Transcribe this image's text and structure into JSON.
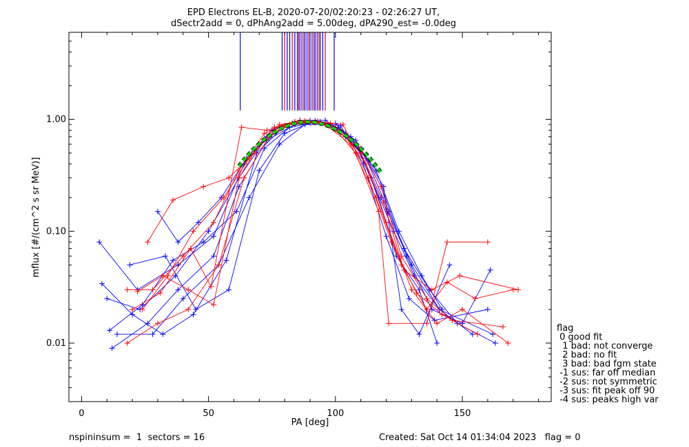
{
  "title_line1": "EPD Electrons EL-B, 2020-07-20/02:20:23 - 02:26:27 UT,",
  "title_line2": "dSectr2add = 0, dPhAng2add = 5.00deg, dPA290_est=  -0.0deg",
  "footer_left": "nspininsum =  1  sectors = 16",
  "footer_right": "Created: Sat Oct 14 01:34:04 2023   flag = 0",
  "legend": {
    "title": "flag",
    "items": [
      " 0 good fit",
      "  1 bad: not converge",
      "  2 bad: no fit",
      "  3 bad: bad fgm state",
      " -1 sus: far off median",
      " -2 sus: not symmetric",
      " -3 sus: fit peak off 90",
      " -4 sus: peaks high var"
    ]
  },
  "chart_data": {
    "type": "line",
    "xlabel": "PA [deg]",
    "ylabel": "mflux [#/(cm^2 s sr MeV)]",
    "xlim": [
      -5,
      185
    ],
    "ylim": [
      0.003,
      6
    ],
    "yscale": "log",
    "xticks": [
      0,
      50,
      100,
      150
    ],
    "xtick_labels": [
      "0",
      "50",
      "100",
      "150"
    ],
    "yticks": [
      0.01,
      0.1,
      1.0
    ],
    "ytick_labels": [
      "0.01",
      "0.10",
      "1.00"
    ],
    "colors": {
      "sector_a": "#0000ff",
      "sector_b": "#ff0000",
      "fit": "#00dd00",
      "fit_outline": "#000000"
    },
    "series": [
      {
        "color": "blue",
        "x": [
          7,
          22,
          38,
          52,
          64,
          75,
          84,
          92,
          101,
          108,
          114,
          123,
          131,
          141,
          162
        ],
        "y": [
          0.08,
          0.03,
          0.05,
          0.09,
          0.4,
          0.8,
          0.95,
          0.96,
          0.85,
          0.6,
          0.3,
          0.1,
          0.04,
          0.02,
          0.012
        ]
      },
      {
        "color": "blue",
        "x": [
          10,
          23,
          37,
          50,
          62,
          73,
          83,
          92,
          102,
          110,
          118,
          127,
          137,
          148,
          163
        ],
        "y": [
          0.025,
          0.02,
          0.04,
          0.1,
          0.3,
          0.7,
          0.92,
          0.97,
          0.8,
          0.5,
          0.2,
          0.07,
          0.03,
          0.015,
          0.01
        ]
      },
      {
        "color": "blue",
        "x": [
          12,
          26,
          38,
          52,
          62,
          73,
          84,
          94,
          104,
          112,
          121,
          130,
          141,
          154
        ],
        "y": [
          0.009,
          0.015,
          0.03,
          0.06,
          0.25,
          0.65,
          0.9,
          0.95,
          0.75,
          0.45,
          0.15,
          0.05,
          0.02,
          0.012
        ]
      },
      {
        "color": "blue",
        "x": [
          30,
          38,
          46,
          55,
          65,
          76,
          86,
          96,
          106,
          116,
          125,
          134,
          142
        ],
        "y": [
          0.15,
          0.08,
          0.12,
          0.2,
          0.45,
          0.85,
          0.98,
          0.98,
          0.7,
          0.35,
          0.1,
          0.04,
          0.02
        ]
      },
      {
        "color": "blue",
        "x": [
          14,
          28,
          40,
          54,
          66,
          78,
          88,
          98,
          108,
          118,
          128,
          138,
          150,
          161
        ],
        "y": [
          0.012,
          0.012,
          0.025,
          0.05,
          0.2,
          0.6,
          0.9,
          0.9,
          0.65,
          0.25,
          0.06,
          0.02,
          0.015,
          0.045
        ]
      },
      {
        "color": "blue",
        "x": [
          19,
          33,
          45,
          58,
          70,
          80,
          90,
          100,
          110,
          119,
          126,
          133,
          145
        ],
        "y": [
          0.05,
          0.06,
          0.02,
          0.03,
          0.35,
          0.75,
          0.93,
          0.92,
          0.55,
          0.25,
          0.02,
          0.012,
          0.05
        ]
      },
      {
        "color": "blue",
        "x": [
          8,
          20,
          32,
          44,
          57,
          69,
          80,
          90,
          100,
          109,
          117,
          124,
          133,
          140
        ],
        "y": [
          0.034,
          0.018,
          0.012,
          0.018,
          0.055,
          0.5,
          0.88,
          0.98,
          0.82,
          0.55,
          0.2,
          0.06,
          0.03,
          0.01
        ]
      },
      {
        "color": "blue",
        "x": [
          11,
          24,
          36,
          48,
          61,
          72,
          82,
          92,
          102,
          111,
          120,
          129,
          139,
          160
        ],
        "y": [
          0.013,
          0.022,
          0.055,
          0.08,
          0.15,
          0.55,
          0.85,
          0.94,
          0.88,
          0.4,
          0.09,
          0.025,
          0.016,
          0.02
        ]
      },
      {
        "color": "red",
        "x": [
          18,
          28,
          40,
          52,
          62,
          72,
          82,
          92,
          102,
          110,
          118,
          126,
          136,
          146,
          166
        ],
        "y": [
          0.03,
          0.03,
          0.06,
          0.12,
          0.35,
          0.75,
          0.9,
          0.94,
          0.8,
          0.55,
          0.25,
          0.06,
          0.025,
          0.016,
          0.014
        ]
      },
      {
        "color": "red",
        "x": [
          18,
          30,
          42,
          54,
          64,
          74,
          84,
          94,
          104,
          112,
          120,
          130,
          140,
          150,
          168
        ],
        "y": [
          0.01,
          0.015,
          0.02,
          0.05,
          0.3,
          0.7,
          0.95,
          0.93,
          0.7,
          0.4,
          0.12,
          0.03,
          0.015,
          0.02,
          0.01
        ]
      },
      {
        "color": "red",
        "x": [
          24,
          34,
          44,
          56,
          66,
          76,
          86,
          96,
          106,
          116,
          126,
          136,
          144,
          155,
          170
        ],
        "y": [
          0.02,
          0.04,
          0.1,
          0.2,
          0.45,
          0.85,
          0.98,
          0.9,
          0.6,
          0.2,
          0.05,
          0.02,
          0.035,
          0.025,
          0.03
        ]
      },
      {
        "color": "red",
        "x": [
          26,
          36,
          48,
          58,
          68,
          78,
          88,
          98,
          108,
          117,
          121,
          136,
          144,
          160
        ],
        "y": [
          0.08,
          0.19,
          0.25,
          0.3,
          0.5,
          0.9,
          0.97,
          0.92,
          0.5,
          0.15,
          0.015,
          0.015,
          0.08,
          0.08
        ]
      },
      {
        "color": "red",
        "x": [
          22,
          32,
          42,
          52,
          62,
          70,
          80,
          90,
          100,
          110,
          119,
          127,
          138,
          149,
          172
        ],
        "y": [
          0.029,
          0.04,
          0.03,
          0.022,
          0.3,
          0.6,
          0.88,
          0.96,
          0.85,
          0.5,
          0.18,
          0.045,
          0.03,
          0.04,
          0.03
        ]
      },
      {
        "color": "red",
        "x": [
          20,
          31,
          43,
          51,
          63,
          73,
          83,
          93,
          103,
          113,
          122,
          132,
          142,
          156
        ],
        "y": [
          0.02,
          0.028,
          0.07,
          0.032,
          0.85,
          0.8,
          0.92,
          0.96,
          0.9,
          0.3,
          0.08,
          0.028,
          0.018,
          0.012
        ]
      }
    ],
    "fit_curve": {
      "center": 89,
      "peak": 0.95,
      "width": 20,
      "x_range": [
        62,
        118
      ]
    },
    "vertical_markers": [
      {
        "x": 62.5,
        "color": "blue"
      },
      {
        "x": 79,
        "color": "blue"
      },
      {
        "x": 80,
        "color": "red"
      },
      {
        "x": 81,
        "color": "blue"
      },
      {
        "x": 82,
        "color": "blue"
      },
      {
        "x": 83,
        "color": "red"
      },
      {
        "x": 84,
        "color": "blue"
      },
      {
        "x": 85,
        "color": "blue"
      },
      {
        "x": 85.5,
        "color": "red"
      },
      {
        "x": 86,
        "color": "blue"
      },
      {
        "x": 86.8,
        "color": "blue"
      },
      {
        "x": 87.5,
        "color": "red"
      },
      {
        "x": 88,
        "color": "blue"
      },
      {
        "x": 88.8,
        "color": "blue"
      },
      {
        "x": 89.5,
        "color": "red"
      },
      {
        "x": 90,
        "color": "blue"
      },
      {
        "x": 90.8,
        "color": "blue"
      },
      {
        "x": 91.5,
        "color": "red"
      },
      {
        "x": 92,
        "color": "blue"
      },
      {
        "x": 92.8,
        "color": "blue"
      },
      {
        "x": 93.5,
        "color": "red"
      },
      {
        "x": 94,
        "color": "blue"
      },
      {
        "x": 95,
        "color": "blue"
      },
      {
        "x": 96,
        "color": "red"
      },
      {
        "x": 99.5,
        "color": "blue"
      }
    ],
    "vertical_marker_range": [
      1.2,
      6
    ]
  }
}
